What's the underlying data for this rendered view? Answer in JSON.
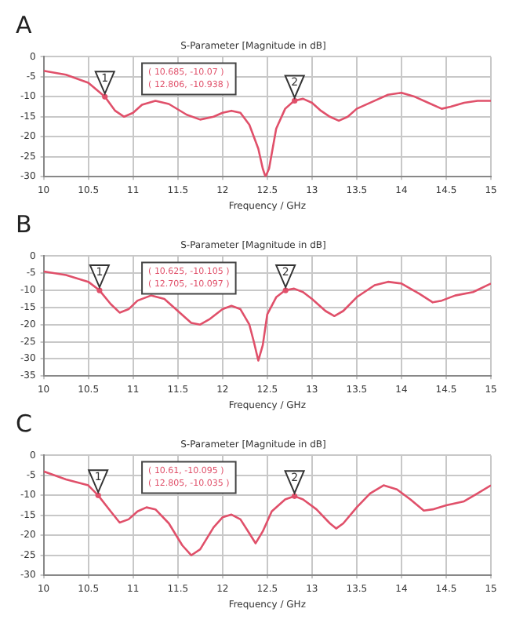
{
  "chart_data": [
    {
      "type": "line",
      "title": "A",
      "subtitle": "S-Parameter [Magnitude in dB]",
      "xlabel": "Frequency / GHz",
      "xlim": [
        10,
        15
      ],
      "xticks": [
        10,
        10.5,
        11,
        11.5,
        12,
        12.5,
        13,
        13.5,
        14,
        14.5,
        15
      ],
      "ylim": [
        -30,
        0
      ],
      "yticks": [
        -30,
        -25,
        -20,
        -15,
        -10,
        -5,
        0
      ],
      "grid": true,
      "legend": false,
      "marker": "none",
      "line_style": "solid",
      "series": [
        {
          "color": "#e0506a",
          "x": [
            10,
            10.25,
            10.5,
            10.685,
            10.8,
            10.9,
            11,
            11.1,
            11.25,
            11.4,
            11.6,
            11.75,
            11.9,
            12,
            12.1,
            12.2,
            12.3,
            12.4,
            12.45,
            12.48,
            12.52,
            12.6,
            12.7,
            12.8,
            12.9,
            13,
            13.1,
            13.2,
            13.3,
            13.4,
            13.5,
            13.7,
            13.85,
            14,
            14.15,
            14.3,
            14.45,
            14.55,
            14.7,
            14.85,
            15
          ],
          "values": [
            -3.5,
            -4.5,
            -6.5,
            -10,
            -13.5,
            -15,
            -14,
            -12,
            -11,
            -11.8,
            -14.5,
            -15.7,
            -15,
            -14,
            -13.5,
            -14,
            -17,
            -23,
            -28,
            -30,
            -28,
            -18,
            -13,
            -11,
            -10.5,
            -11.5,
            -13.5,
            -15,
            -16,
            -15,
            -13,
            -11,
            -9.5,
            -9,
            -10,
            -11.5,
            -13,
            -12.5,
            -11.5,
            -11,
            -11
          ]
        }
      ],
      "annotations": [
        {
          "text": "1",
          "x": 10.685,
          "y": -10
        },
        {
          "text": "2",
          "x": 12.806,
          "y": -11
        },
        "( 10.685, -10.07 )",
        "( 12.806, -10.938 )"
      ]
    },
    {
      "type": "line",
      "title": "B",
      "subtitle": "S-Parameter [Magnitude in dB]",
      "xlabel": "Frequency / GHz",
      "xlim": [
        10,
        15
      ],
      "xticks": [
        10,
        10.5,
        11,
        11.5,
        12,
        12.5,
        13,
        13.5,
        14,
        14.5,
        15
      ],
      "ylim": [
        -35,
        0
      ],
      "yticks": [
        -35,
        -30,
        -25,
        -20,
        -15,
        -10,
        -5,
        0
      ],
      "grid": true,
      "legend": false,
      "marker": "none",
      "line_style": "solid",
      "series": [
        {
          "color": "#e0506a",
          "x": [
            10,
            10.25,
            10.5,
            10.625,
            10.75,
            10.85,
            10.95,
            11.05,
            11.2,
            11.35,
            11.5,
            11.65,
            11.75,
            11.85,
            12,
            12.1,
            12.2,
            12.3,
            12.35,
            12.4,
            12.45,
            12.5,
            12.6,
            12.7,
            12.8,
            12.9,
            13,
            13.15,
            13.25,
            13.35,
            13.5,
            13.7,
            13.85,
            14,
            14.2,
            14.35,
            14.45,
            14.6,
            14.8,
            15
          ],
          "values": [
            -4.5,
            -5.5,
            -7.5,
            -10,
            -14,
            -16.5,
            -15.5,
            -13,
            -11.5,
            -12.5,
            -16,
            -19.5,
            -20,
            -18.5,
            -15.5,
            -14.5,
            -15.5,
            -20,
            -25,
            -30.5,
            -26,
            -17,
            -12,
            -10,
            -9.5,
            -10.5,
            -12.5,
            -16,
            -17.5,
            -16,
            -12,
            -8.5,
            -7.5,
            -8,
            -11,
            -13.5,
            -13,
            -11.5,
            -10.5,
            -8
          ]
        }
      ],
      "annotations": [
        {
          "text": "1",
          "x": 10.625,
          "y": -10
        },
        {
          "text": "2",
          "x": 12.705,
          "y": -10
        },
        "( 10.625, -10.105 )",
        "( 12.705, -10.097 )"
      ]
    },
    {
      "type": "line",
      "title": "C",
      "subtitle": "S-Parameter [Magnitude in dB]",
      "xlabel": "Frequency / GHz",
      "xlim": [
        10,
        15
      ],
      "xticks": [
        10,
        10.5,
        11,
        11.5,
        12,
        12.5,
        13,
        13.5,
        14,
        14.5,
        15
      ],
      "ylim": [
        -30,
        0
      ],
      "yticks": [
        -30,
        -25,
        -20,
        -15,
        -10,
        -5,
        0
      ],
      "grid": true,
      "legend": false,
      "marker": "none",
      "line_style": "solid",
      "series": [
        {
          "color": "#e0506a",
          "x": [
            10,
            10.25,
            10.5,
            10.61,
            10.75,
            10.85,
            10.95,
            11.05,
            11.15,
            11.25,
            11.4,
            11.55,
            11.65,
            11.75,
            11.9,
            12,
            12.1,
            12.2,
            12.3,
            12.37,
            12.45,
            12.55,
            12.7,
            12.805,
            12.9,
            13.05,
            13.2,
            13.27,
            13.35,
            13.5,
            13.65,
            13.8,
            13.95,
            14.1,
            14.25,
            14.35,
            14.5,
            14.7,
            14.85,
            15
          ],
          "values": [
            -4,
            -6,
            -7.5,
            -10,
            -14,
            -16.8,
            -16,
            -14,
            -13,
            -13.5,
            -17,
            -22.5,
            -25,
            -23.5,
            -18,
            -15.5,
            -14.8,
            -16,
            -19.5,
            -22,
            -19,
            -14,
            -11,
            -10.2,
            -11,
            -13.5,
            -17,
            -18.3,
            -17,
            -13,
            -9.5,
            -7.5,
            -8.5,
            -11,
            -13.8,
            -13.5,
            -12.5,
            -11.5,
            -9.5,
            -7.5
          ]
        }
      ],
      "annotations": [
        {
          "text": "1",
          "x": 10.61,
          "y": -10
        },
        {
          "text": "2",
          "x": 12.805,
          "y": -10.2
        },
        "( 10.61, -10.095 )",
        "( 12.805, -10.035 )"
      ]
    }
  ]
}
